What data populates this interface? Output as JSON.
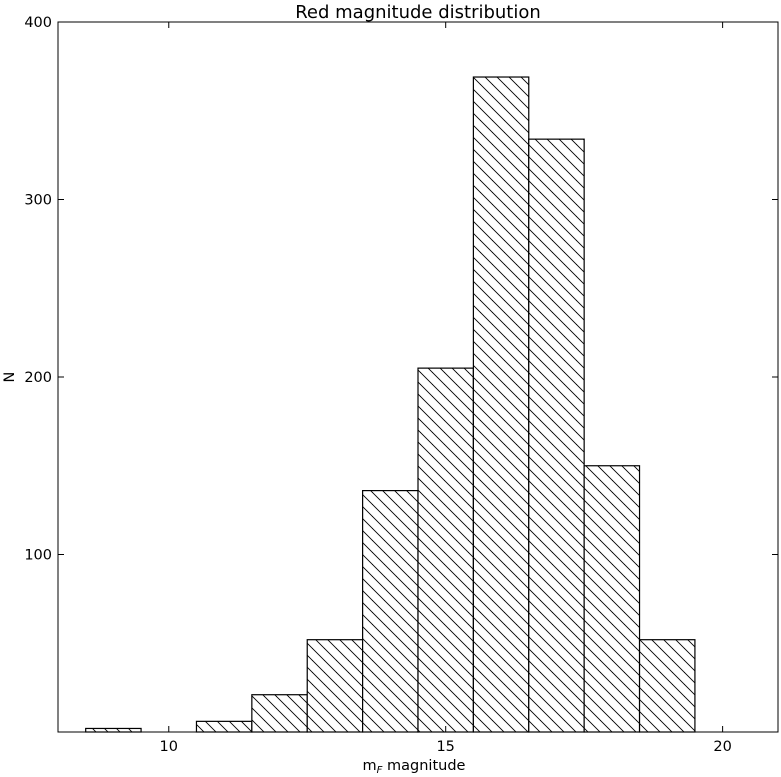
{
  "chart_data": {
    "type": "bar",
    "title": "Red magnitude distribution",
    "xlabel_main": "m",
    "xlabel_sub": "F",
    "xlabel_rest": " magnitude",
    "ylabel": "N",
    "xlim": [
      8,
      21
    ],
    "ylim": [
      0,
      400
    ],
    "xticks": [
      10,
      15,
      20
    ],
    "yticks": [
      100,
      200,
      300,
      400
    ],
    "bin_width": 1,
    "bar_fill": "#ffffff",
    "bar_edge": "#000000",
    "hatch": "diagonal-backslash",
    "grid": false,
    "bins": [
      {
        "x": 8.5,
        "value": 2
      },
      {
        "x": 10.5,
        "value": 6
      },
      {
        "x": 11.5,
        "value": 21
      },
      {
        "x": 12.5,
        "value": 52
      },
      {
        "x": 13.5,
        "value": 136
      },
      {
        "x": 14.5,
        "value": 205
      },
      {
        "x": 15.5,
        "value": 369
      },
      {
        "x": 16.5,
        "value": 334
      },
      {
        "x": 17.5,
        "value": 150
      },
      {
        "x": 18.5,
        "value": 52
      }
    ]
  }
}
